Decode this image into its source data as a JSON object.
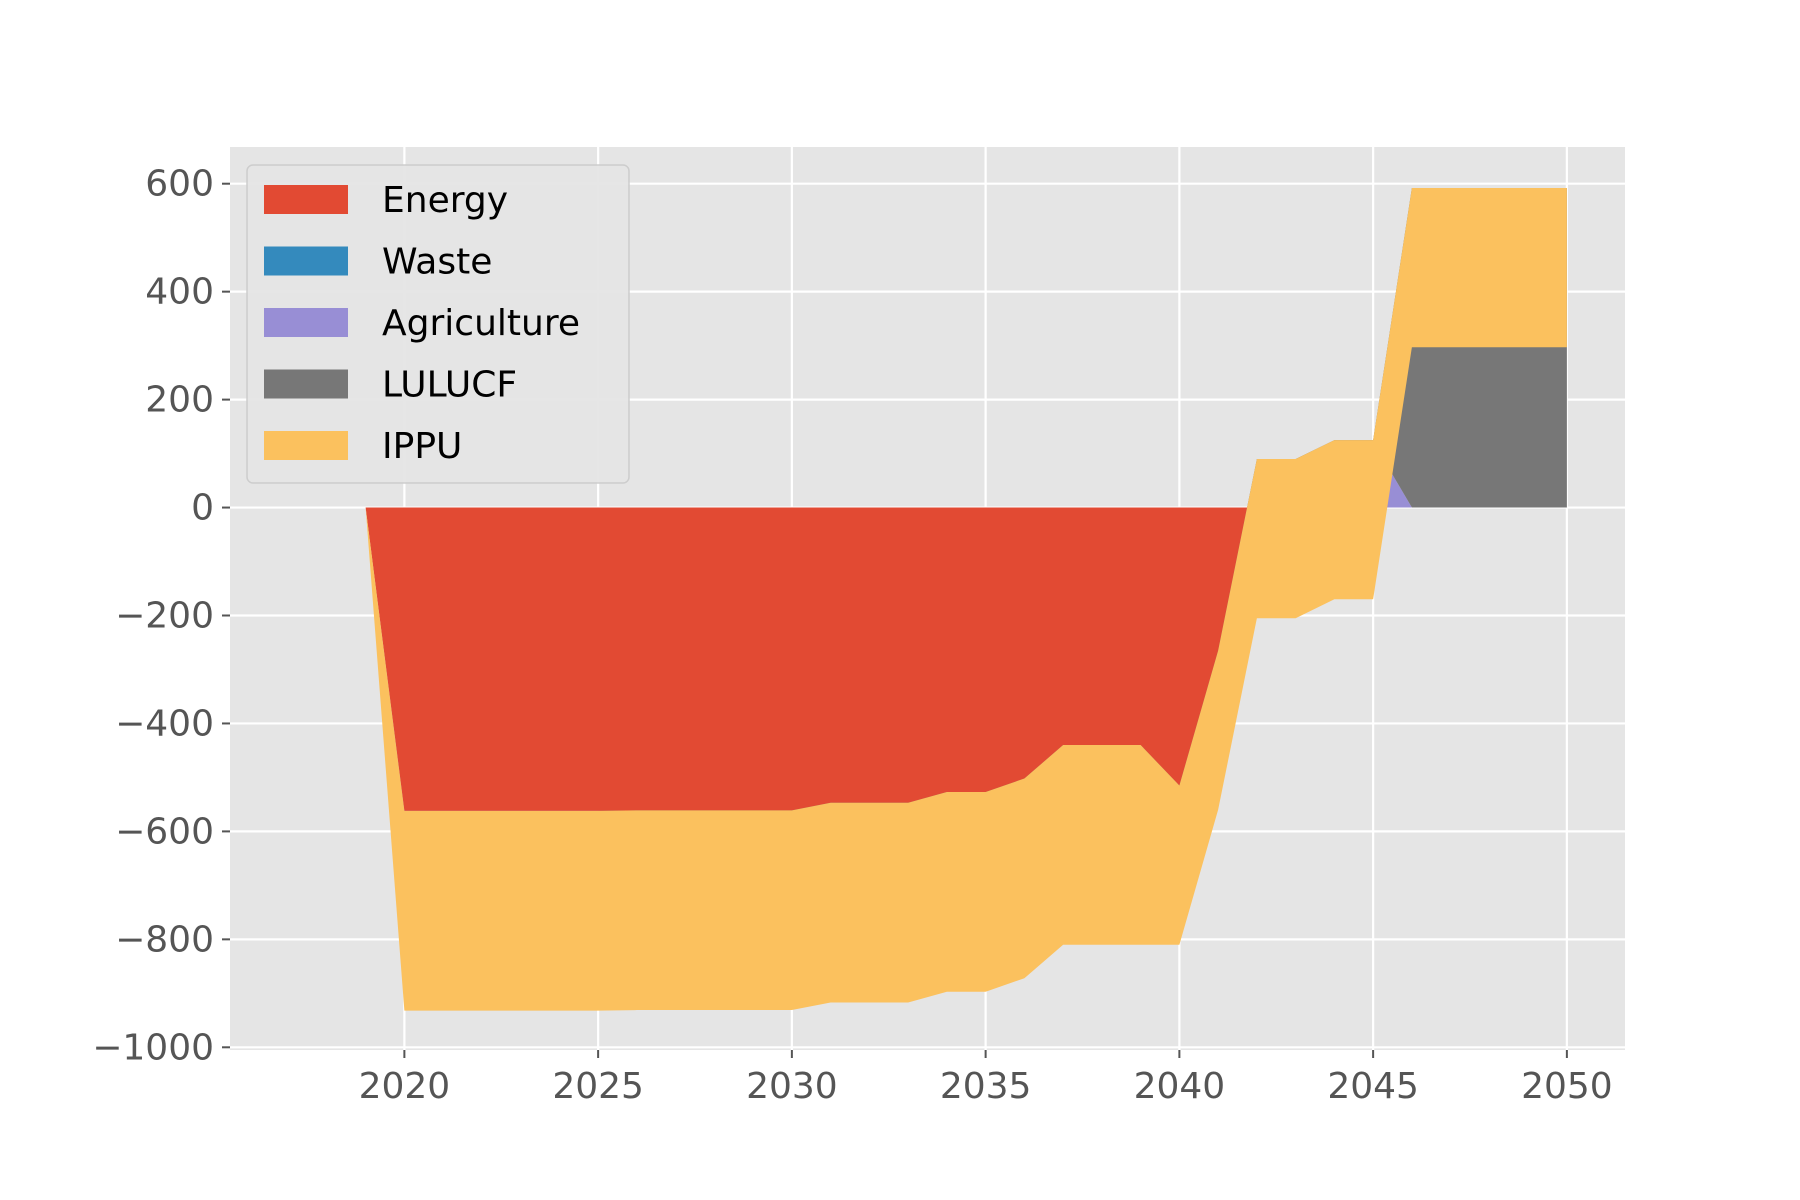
{
  "chart_data": {
    "type": "area",
    "title": "",
    "xlabel": "",
    "ylabel": "",
    "xlim": [
      2015.5,
      2051.5
    ],
    "ylim": [
      -1005,
      668
    ],
    "grid": true,
    "legend_position": "top-left",
    "x": [
      2019,
      2020,
      2021,
      2022,
      2023,
      2024,
      2025,
      2026,
      2027,
      2028,
      2029,
      2030,
      2031,
      2032,
      2033,
      2034,
      2035,
      2036,
      2037,
      2038,
      2039,
      2040,
      2041,
      2042,
      2043,
      2044,
      2045,
      2046,
      2047,
      2048,
      2049,
      2050
    ],
    "x_ticks": [
      "2020",
      "2025",
      "2030",
      "2035",
      "2040",
      "2045",
      "2050"
    ],
    "x_tick_values": [
      2020,
      2025,
      2030,
      2035,
      2040,
      2045,
      2050
    ],
    "y_ticks": [
      "600",
      "400",
      "200",
      "0",
      "−200",
      "−400",
      "−600",
      "−800",
      "−1000"
    ],
    "y_tick_values": [
      600,
      400,
      200,
      0,
      -200,
      -400,
      -600,
      -800,
      -1000
    ],
    "series": [
      {
        "name": "Energy",
        "color": "#E24A33",
        "values": [
          0,
          -565,
          -565,
          -565,
          -565,
          -565,
          -565,
          -565,
          -565,
          -565,
          -565,
          -565,
          -565,
          -565,
          -565,
          -565,
          -565,
          -565,
          -565,
          -565,
          -565,
          -640,
          -390,
          -35,
          -35,
          0,
          0,
          0,
          0,
          0,
          0,
          0
        ]
      },
      {
        "name": "Waste",
        "color": "#348ABD",
        "values": [
          0,
          0,
          0,
          0,
          0,
          0,
          0,
          0,
          0,
          0,
          0,
          0,
          0,
          0,
          0,
          0,
          0,
          0,
          0,
          0,
          0,
          0,
          0,
          0,
          0,
          0,
          0,
          0,
          0,
          0,
          0,
          0
        ]
      },
      {
        "name": "Agriculture",
        "color": "#988ED5",
        "values": [
          0,
          3,
          3,
          3,
          3,
          3,
          3,
          1,
          1,
          1,
          1,
          1,
          15,
          15,
          15,
          35,
          35,
          60,
          122,
          122,
          122,
          122,
          122,
          122,
          122,
          122,
          122,
          0,
          0,
          0,
          0,
          0
        ]
      },
      {
        "name": "LULUCF",
        "color": "#777777",
        "values": [
          0,
          0,
          0,
          0,
          0,
          0,
          0,
          3,
          3,
          3,
          3,
          3,
          3,
          3,
          3,
          3,
          3,
          3,
          3,
          3,
          3,
          3,
          3,
          3,
          3,
          3,
          3,
          592,
          592,
          592,
          592,
          592
        ]
      },
      {
        "name": "IPPU",
        "color": "#FBC15E",
        "values": [
          0,
          -370,
          -370,
          -370,
          -370,
          -370,
          -370,
          -370,
          -370,
          -370,
          -370,
          -370,
          -370,
          -370,
          -370,
          -370,
          -370,
          -370,
          -370,
          -370,
          -370,
          -295,
          -295,
          -295,
          -295,
          -295,
          -295,
          -295,
          -295,
          -295,
          -295,
          -295
        ]
      }
    ]
  }
}
